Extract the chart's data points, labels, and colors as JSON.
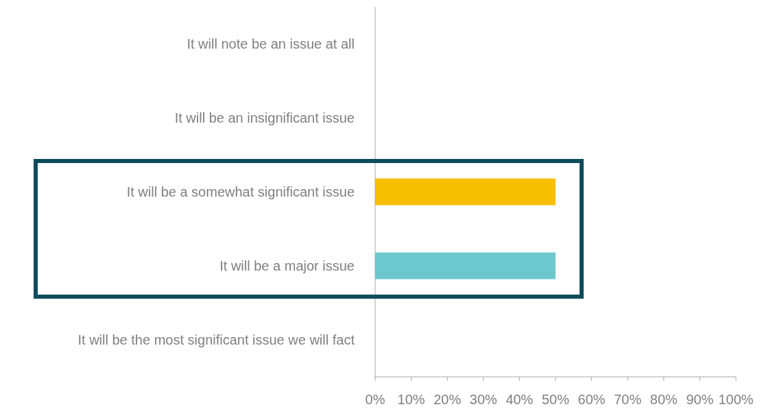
{
  "chart_data": {
    "type": "bar",
    "orientation": "horizontal",
    "categories": [
      "It will note be an issue at all",
      "It will be an insignificant issue",
      "It will be a somewhat significant issue",
      "It will be a major issue",
      "It will be the most significant issue we will fact"
    ],
    "values": [
      0,
      0,
      50,
      50,
      0
    ],
    "colors": [
      "#f8be00",
      "#f8be00",
      "#f8be00",
      "#6cc8cc",
      "#6cc8cc"
    ],
    "xlim": [
      0,
      100
    ],
    "xticks": [
      {
        "value": 0,
        "label": "0%"
      },
      {
        "value": 10,
        "label": "10%"
      },
      {
        "value": 20,
        "label": "20%"
      },
      {
        "value": 30,
        "label": "30%"
      },
      {
        "value": 40,
        "label": "40%"
      },
      {
        "value": 50,
        "label": "50%"
      },
      {
        "value": 60,
        "label": "60%"
      },
      {
        "value": 70,
        "label": "70%"
      },
      {
        "value": 80,
        "label": "80%"
      },
      {
        "value": 90,
        "label": "90%"
      },
      {
        "value": 100,
        "label": "100%"
      }
    ],
    "grid": false,
    "legend": false
  }
}
